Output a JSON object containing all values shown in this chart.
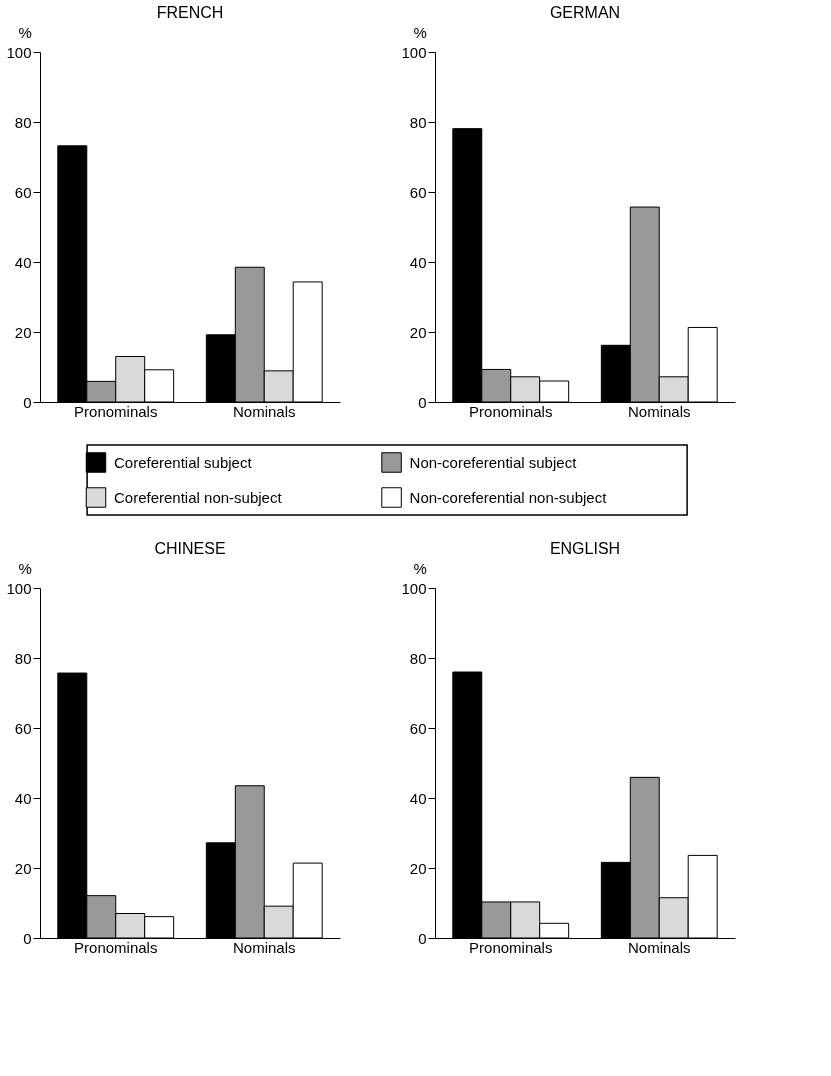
{
  "chart_data": [
    {
      "type": "bar",
      "title": "FRENCH",
      "ylabel": "%",
      "categories": [
        "Pronominals",
        "Nominals"
      ],
      "ylim": [
        0,
        100
      ],
      "yticks": [
        0,
        20,
        40,
        60,
        80,
        100
      ],
      "grid": false,
      "legend": "bottom",
      "series": [
        {
          "name": "Coreferential subject",
          "color": "#000000",
          "values": [
            73.2,
            19.2
          ]
        },
        {
          "name": "Non-coreferential subject",
          "color": "#999999",
          "values": [
            5.9,
            38.5
          ]
        },
        {
          "name": "Coreferential non-subject",
          "color": "#d9d9d9",
          "values": [
            13.0,
            8.9
          ]
        },
        {
          "name": "Non-coreferential non-subject",
          "color": "#ffffff",
          "values": [
            9.2,
            34.3
          ]
        }
      ]
    },
    {
      "type": "bar",
      "title": "GERMAN",
      "ylabel": "%",
      "categories": [
        "Pronominals",
        "Nominals"
      ],
      "ylim": [
        0,
        100
      ],
      "yticks": [
        0,
        20,
        40,
        60,
        80,
        100
      ],
      "grid": false,
      "series": [
        {
          "color": "#000000",
          "values": [
            78.1,
            16.2
          ]
        },
        {
          "color": "#999999",
          "values": [
            9.3,
            55.7
          ]
        },
        {
          "color": "#d9d9d9",
          "values": [
            7.2,
            7.2
          ]
        },
        {
          "color": "#ffffff",
          "values": [
            6.0,
            21.3
          ]
        }
      ]
    },
    {
      "type": "bar",
      "title": "CHINESE",
      "ylabel": "%",
      "categories": [
        "Pronominals",
        "Nominals"
      ],
      "ylim": [
        0,
        100
      ],
      "yticks": [
        0,
        20,
        40,
        60,
        80,
        100
      ],
      "grid": false,
      "series": [
        {
          "color": "#000000",
          "values": [
            75.7,
            27.2
          ]
        },
        {
          "color": "#999999",
          "values": [
            12.1,
            43.5
          ]
        },
        {
          "color": "#d9d9d9",
          "values": [
            7.0,
            9.1
          ]
        },
        {
          "color": "#ffffff",
          "values": [
            6.1,
            21.4
          ]
        }
      ]
    },
    {
      "type": "bar",
      "title": "ENGLISH",
      "ylabel": "%",
      "categories": [
        "Pronominals",
        "Nominals"
      ],
      "ylim": [
        0,
        100
      ],
      "yticks": [
        0,
        20,
        40,
        60,
        80,
        100
      ],
      "grid": false,
      "series": [
        {
          "color": "#000000",
          "values": [
            76.0,
            21.6
          ]
        },
        {
          "color": "#999999",
          "values": [
            10.3,
            45.9
          ]
        },
        {
          "color": "#d9d9d9",
          "values": [
            10.3,
            11.5
          ]
        },
        {
          "color": "#ffffff",
          "values": [
            4.2,
            23.6
          ]
        }
      ]
    }
  ]
}
